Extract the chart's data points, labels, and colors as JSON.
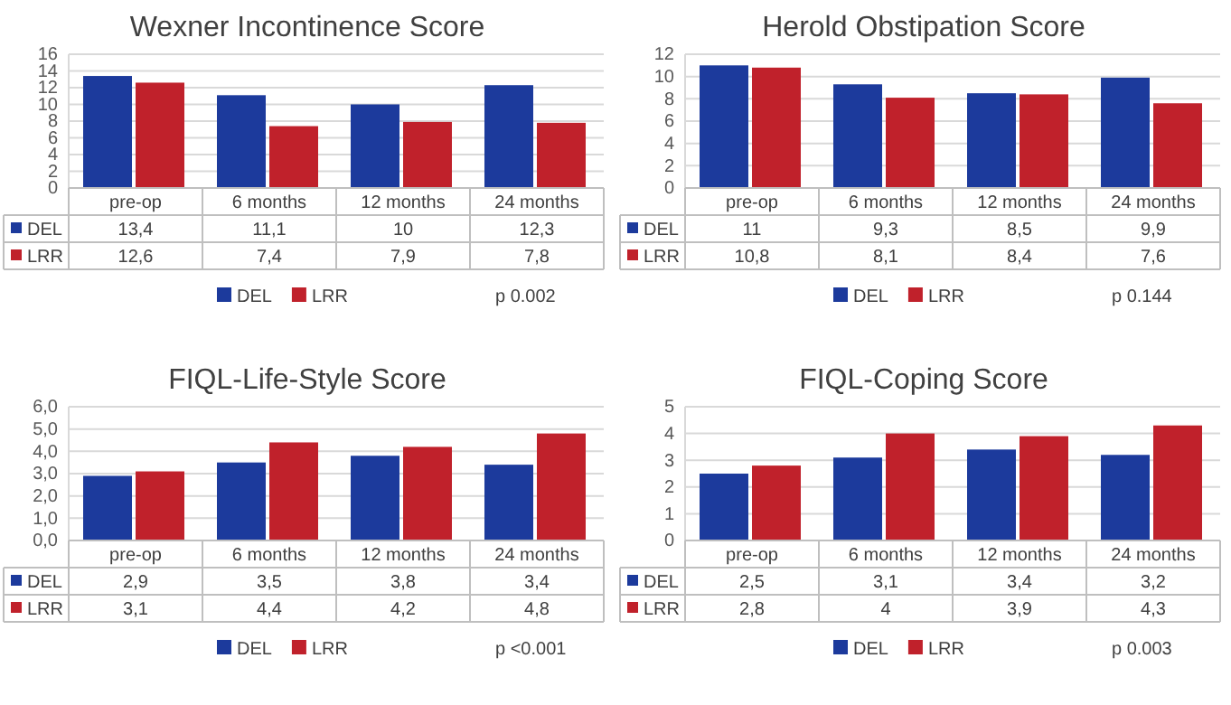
{
  "chart_data": [
    {
      "type": "bar",
      "title": "Wexner Incontinence Score",
      "categories": [
        "pre-op",
        "6 months",
        "12 months",
        "24 months"
      ],
      "series": [
        {
          "name": "DEL",
          "color": "#1c3a9c",
          "values": [
            13.4,
            11.1,
            10,
            12.3
          ],
          "value_labels": [
            "13,4",
            "11,1",
            "10",
            "12,3"
          ]
        },
        {
          "name": "LRR",
          "color": "#c0212b",
          "values": [
            12.6,
            7.4,
            7.9,
            7.8
          ],
          "value_labels": [
            "12,6",
            "7,4",
            "7,9",
            "7,8"
          ]
        }
      ],
      "ylim": [
        0,
        16
      ],
      "yticks": [
        0,
        2,
        4,
        6,
        8,
        10,
        12,
        14,
        16
      ],
      "grid": "y",
      "legend": "bottom",
      "annotations": [
        "p 0.002"
      ]
    },
    {
      "type": "bar",
      "title": "Herold Obstipation Score",
      "categories": [
        "pre-op",
        "6 months",
        "12 months",
        "24 months"
      ],
      "series": [
        {
          "name": "DEL",
          "color": "#1c3a9c",
          "values": [
            11,
            9.3,
            8.5,
            9.9
          ],
          "value_labels": [
            "11",
            "9,3",
            "8,5",
            "9,9"
          ]
        },
        {
          "name": "LRR",
          "color": "#c0212b",
          "values": [
            10.8,
            8.1,
            8.4,
            7.6
          ],
          "value_labels": [
            "10,8",
            "8,1",
            "8,4",
            "7,6"
          ]
        }
      ],
      "ylim": [
        0,
        12
      ],
      "yticks": [
        0,
        2,
        4,
        6,
        8,
        10,
        12
      ],
      "grid": "y",
      "legend": "bottom",
      "annotations": [
        "p 0.144"
      ]
    },
    {
      "type": "bar",
      "title": "FIQL-Life-Style Score",
      "categories": [
        "pre-op",
        "6 months",
        "12 months",
        "24 months"
      ],
      "series": [
        {
          "name": "DEL",
          "color": "#1c3a9c",
          "values": [
            2.9,
            3.5,
            3.8,
            3.4
          ],
          "value_labels": [
            "2,9",
            "3,5",
            "3,8",
            "3,4"
          ]
        },
        {
          "name": "LRR",
          "color": "#c0212b",
          "values": [
            3.1,
            4.4,
            4.2,
            4.8
          ],
          "value_labels": [
            "3,1",
            "4,4",
            "4,2",
            "4,8"
          ]
        }
      ],
      "ylim": [
        0,
        6
      ],
      "yticks": [
        {
          "value": 0,
          "label": "0,0"
        },
        {
          "value": 1,
          "label": "1,0"
        },
        {
          "value": 2,
          "label": "2,0"
        },
        {
          "value": 3,
          "label": "3,0"
        },
        {
          "value": 4,
          "label": "4,0"
        },
        {
          "value": 5,
          "label": "5,0"
        },
        {
          "value": 6,
          "label": "6,0"
        }
      ],
      "grid": "y",
      "legend": "bottom",
      "annotations": [
        "p <0.001"
      ]
    },
    {
      "type": "bar",
      "title": "FIQL-Coping Score",
      "categories": [
        "pre-op",
        "6 months",
        "12 months",
        "24 months"
      ],
      "series": [
        {
          "name": "DEL",
          "color": "#1c3a9c",
          "values": [
            2.5,
            3.1,
            3.4,
            3.2
          ],
          "value_labels": [
            "2,5",
            "3,1",
            "3,4",
            "3,2"
          ]
        },
        {
          "name": "LRR",
          "color": "#c0212b",
          "values": [
            2.8,
            4,
            3.9,
            4.3
          ],
          "value_labels": [
            "2,8",
            "4",
            "3,9",
            "4,3"
          ]
        }
      ],
      "ylim": [
        0,
        5
      ],
      "yticks": [
        0,
        1,
        2,
        3,
        4,
        5
      ],
      "grid": "y",
      "legend": "bottom",
      "annotations": [
        "p 0.003"
      ]
    }
  ]
}
